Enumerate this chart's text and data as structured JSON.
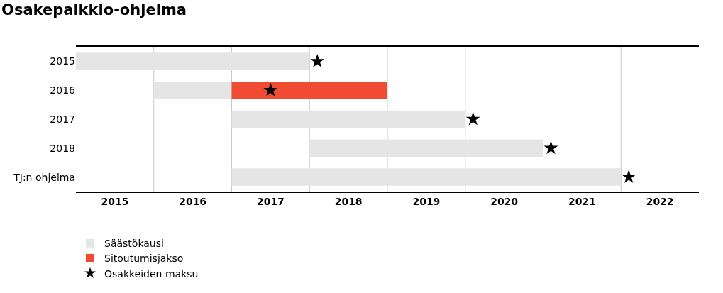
{
  "chart_data": {
    "type": "bar",
    "orientation": "horizontal",
    "title": "Osakepalkkio-ohjelma",
    "categories": [
      "2015",
      "2016",
      "2017",
      "2018",
      "TJ:n ohjelma"
    ],
    "series": [
      {
        "name": "Säästökausi",
        "color": "#e5e5e6",
        "base": [
          2014.5,
          2015.5,
          2016.5,
          2017.5,
          2016.5
        ],
        "values": [
          3,
          1,
          3,
          3,
          5
        ]
      },
      {
        "name": "Sitoutumisjakso",
        "color": "#f04b33",
        "base": [
          null,
          2016.5,
          null,
          null,
          null
        ],
        "values": [
          null,
          2,
          null,
          null,
          null
        ]
      },
      {
        "name": "Osakkeiden maksu",
        "type": "scatter",
        "marker": "star",
        "color": "#000000",
        "values": [
          2017.6,
          2017.0,
          2019.6,
          2020.6,
          2021.6
        ]
      }
    ],
    "xlim": [
      2014.5,
      2022.5
    ],
    "xticks": [
      2015,
      2016,
      2017,
      2018,
      2019,
      2020,
      2021,
      2022
    ],
    "grid": false,
    "ref_lines": [
      {
        "axis": "x",
        "value": 2015.5,
        "color": "#c8c8c8"
      },
      {
        "axis": "x",
        "value": 2016.5,
        "color": "#c8c8c8"
      },
      {
        "axis": "x",
        "value": 2017.5,
        "color": "#c8c8c8"
      },
      {
        "axis": "x",
        "value": 2018.5,
        "color": "#c8c8c8"
      },
      {
        "axis": "x",
        "value": 2019.5,
        "color": "#c8c8c8"
      },
      {
        "axis": "x",
        "value": 2020.5,
        "color": "#c8c8c8"
      },
      {
        "axis": "x",
        "value": 2021.5,
        "color": "#c8c8c8"
      }
    ],
    "legend": "bottom left"
  }
}
